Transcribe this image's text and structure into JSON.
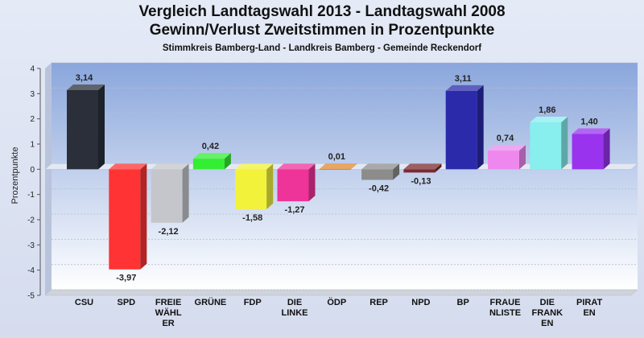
{
  "chart_data": {
    "type": "bar",
    "title": "Vergleich Landtagswahl 2013 - Landtagswahl 2008",
    "subtitle": "Gewinn/Verlust Zweitstimmen in Prozentpunkte",
    "caption": "Stimmkreis Bamberg-Land - Landkreis Bamberg - Gemeinde Reckendorf",
    "ylabel": "Prozentpunkte",
    "xlabel": "",
    "ylim": [
      -5,
      4
    ],
    "yticks": [
      4,
      3,
      2,
      1,
      0,
      -1,
      -2,
      -3,
      -4,
      -5
    ],
    "grid": true,
    "categories": [
      [
        "CSU"
      ],
      [
        "SPD"
      ],
      [
        "FREIE",
        "WÄHL",
        "ER"
      ],
      [
        "GRÜNE"
      ],
      [
        "FDP"
      ],
      [
        "DIE",
        "LINKE"
      ],
      [
        "ÖDP"
      ],
      [
        "REP"
      ],
      [
        "NPD"
      ],
      [
        "BP"
      ],
      [
        "FRAUE",
        "NLISTE"
      ],
      [
        "DIE",
        "FRANK",
        "EN"
      ],
      [
        "PIRAT",
        "EN"
      ]
    ],
    "values": [
      3.14,
      -3.97,
      -2.12,
      0.42,
      -1.58,
      -1.27,
      0.01,
      -0.42,
      -0.13,
      3.11,
      0.74,
      1.86,
      1.4
    ],
    "value_labels": [
      "3,14",
      "-3,97",
      "-2,12",
      "0,42",
      "-1,58",
      "-1,27",
      "0,01",
      "-0,42",
      "-0,13",
      "3,11",
      "0,74",
      "1,86",
      "1,40"
    ],
    "colors": [
      "#2a2f3a",
      "#ff3333",
      "#c4c6cb",
      "#33ee33",
      "#f2f23a",
      "#ee3399",
      "#dd8833",
      "#8c8c8c",
      "#7a2a30",
      "#2a2aaa",
      "#ee88ee",
      "#88eeee",
      "#9933ee"
    ]
  }
}
